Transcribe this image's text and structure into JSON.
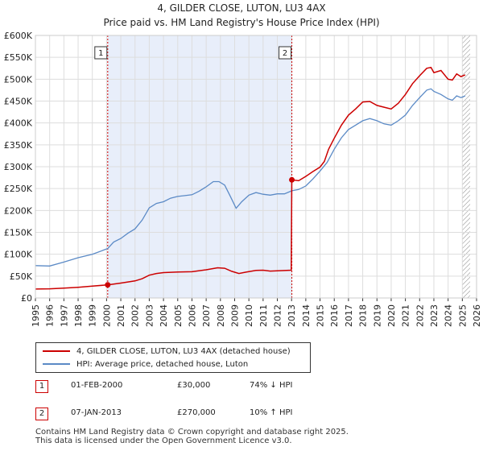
{
  "chart_data": {
    "type": "line",
    "title": "4, GILDER CLOSE, LUTON, LU3 4AX",
    "subtitle": "Price paid vs. HM Land Registry's House Price Index (HPI)",
    "xlim": [
      1995,
      2026
    ],
    "ylim": [
      0,
      600000
    ],
    "x_ticks": [
      "1995",
      "1996",
      "1997",
      "1998",
      "1999",
      "2000",
      "2001",
      "2002",
      "2003",
      "2004",
      "2005",
      "2006",
      "2007",
      "2008",
      "2009",
      "2010",
      "2011",
      "2012",
      "2013",
      "2014",
      "2015",
      "2016",
      "2017",
      "2018",
      "2019",
      "2020",
      "2021",
      "2022",
      "2023",
      "2024",
      "2025",
      "2026"
    ],
    "y_ticks": [
      {
        "value": 0,
        "label": "£0"
      },
      {
        "value": 50000,
        "label": "£50K"
      },
      {
        "value": 100000,
        "label": "£100K"
      },
      {
        "value": 150000,
        "label": "£150K"
      },
      {
        "value": 200000,
        "label": "£200K"
      },
      {
        "value": 250000,
        "label": "£250K"
      },
      {
        "value": 300000,
        "label": "£300K"
      },
      {
        "value": 350000,
        "label": "£350K"
      },
      {
        "value": 400000,
        "label": "£400K"
      },
      {
        "value": 450000,
        "label": "£450K"
      },
      {
        "value": 500000,
        "label": "£500K"
      },
      {
        "value": 550000,
        "label": "£550K"
      },
      {
        "value": 600000,
        "label": "£600K"
      }
    ],
    "grid": true,
    "shaded_span": [
      2000.08,
      2013.02
    ],
    "hatched_after": 2025.0,
    "series": [
      {
        "name": "4, GILDER CLOSE, LUTON, LU3 4AX (detached house)",
        "color": "#cc0000",
        "points": [
          [
            1995.0,
            20500
          ],
          [
            1996.0,
            21000
          ],
          [
            1997.0,
            22500
          ],
          [
            1998.0,
            24500
          ],
          [
            1999.0,
            27000
          ],
          [
            2000.08,
            30000
          ],
          [
            2001.0,
            34000
          ],
          [
            2002.0,
            39000
          ],
          [
            2002.5,
            44000
          ],
          [
            2003.0,
            52000
          ],
          [
            2003.5,
            56000
          ],
          [
            2004.0,
            58000
          ],
          [
            2005.0,
            59500
          ],
          [
            2006.0,
            60000
          ],
          [
            2007.0,
            64500
          ],
          [
            2007.8,
            69000
          ],
          [
            2008.3,
            68000
          ],
          [
            2008.8,
            61000
          ],
          [
            2009.3,
            56000
          ],
          [
            2009.8,
            59000
          ],
          [
            2010.5,
            63000
          ],
          [
            2011.0,
            63500
          ],
          [
            2011.5,
            61500
          ],
          [
            2012.0,
            62000
          ],
          [
            2012.98,
            63500
          ],
          [
            2013.02,
            270000
          ],
          [
            2013.5,
            268000
          ],
          [
            2014.0,
            278000
          ],
          [
            2014.5,
            289000
          ],
          [
            2015.0,
            299000
          ],
          [
            2015.3,
            312000
          ],
          [
            2015.6,
            340000
          ],
          [
            2016.0,
            365000
          ],
          [
            2016.5,
            395000
          ],
          [
            2017.0,
            418000
          ],
          [
            2017.5,
            432000
          ],
          [
            2018.0,
            448000
          ],
          [
            2018.5,
            449000
          ],
          [
            2019.0,
            440000
          ],
          [
            2019.5,
            436000
          ],
          [
            2020.0,
            432000
          ],
          [
            2020.5,
            445000
          ],
          [
            2021.0,
            465000
          ],
          [
            2021.5,
            490000
          ],
          [
            2022.0,
            508000
          ],
          [
            2022.5,
            525000
          ],
          [
            2022.8,
            527000
          ],
          [
            2023.0,
            515000
          ],
          [
            2023.5,
            520000
          ],
          [
            2024.0,
            500000
          ],
          [
            2024.3,
            498000
          ],
          [
            2024.6,
            512000
          ],
          [
            2024.9,
            506000
          ],
          [
            2025.2,
            510000
          ]
        ]
      },
      {
        "name": "HPI: Average price, detached house, Luton",
        "color": "#5b8ac6",
        "points": [
          [
            1995.0,
            74000
          ],
          [
            1996.0,
            73000
          ],
          [
            1997.0,
            82000
          ],
          [
            1998.0,
            92000
          ],
          [
            1999.0,
            100000
          ],
          [
            2000.08,
            113000
          ],
          [
            2000.5,
            128000
          ],
          [
            2001.0,
            136000
          ],
          [
            2001.5,
            148000
          ],
          [
            2002.0,
            158000
          ],
          [
            2002.5,
            178000
          ],
          [
            2003.0,
            206000
          ],
          [
            2003.5,
            216000
          ],
          [
            2004.0,
            220000
          ],
          [
            2004.5,
            228000
          ],
          [
            2005.0,
            232000
          ],
          [
            2005.5,
            234000
          ],
          [
            2006.0,
            236000
          ],
          [
            2006.5,
            244000
          ],
          [
            2007.0,
            254000
          ],
          [
            2007.5,
            266000
          ],
          [
            2007.9,
            266000
          ],
          [
            2008.3,
            258000
          ],
          [
            2008.7,
            232000
          ],
          [
            2009.1,
            205000
          ],
          [
            2009.5,
            220000
          ],
          [
            2010.0,
            235000
          ],
          [
            2010.5,
            241000
          ],
          [
            2011.0,
            237000
          ],
          [
            2011.5,
            235000
          ],
          [
            2012.0,
            238000
          ],
          [
            2012.5,
            238000
          ],
          [
            2013.02,
            245000
          ],
          [
            2013.5,
            248000
          ],
          [
            2014.0,
            256000
          ],
          [
            2014.5,
            272000
          ],
          [
            2015.0,
            290000
          ],
          [
            2015.5,
            310000
          ],
          [
            2016.0,
            340000
          ],
          [
            2016.5,
            366000
          ],
          [
            2017.0,
            385000
          ],
          [
            2017.5,
            395000
          ],
          [
            2018.0,
            405000
          ],
          [
            2018.5,
            410000
          ],
          [
            2019.0,
            405000
          ],
          [
            2019.5,
            398000
          ],
          [
            2020.0,
            395000
          ],
          [
            2020.5,
            405000
          ],
          [
            2021.0,
            418000
          ],
          [
            2021.5,
            440000
          ],
          [
            2022.0,
            458000
          ],
          [
            2022.5,
            475000
          ],
          [
            2022.8,
            478000
          ],
          [
            2023.0,
            472000
          ],
          [
            2023.5,
            465000
          ],
          [
            2024.0,
            455000
          ],
          [
            2024.3,
            452000
          ],
          [
            2024.6,
            462000
          ],
          [
            2024.9,
            458000
          ],
          [
            2025.2,
            462000
          ]
        ]
      }
    ],
    "sales": [
      {
        "marker": "1",
        "x": 2000.08,
        "value": 30000
      },
      {
        "marker": "2",
        "x": 2013.02,
        "value": 270000
      }
    ]
  },
  "legend": {
    "property_label": "4, GILDER CLOSE, LUTON, LU3 4AX (detached house)",
    "hpi_label": "HPI: Average price, detached house, Luton",
    "property_color": "#cc0000",
    "hpi_color": "#5b8ac6"
  },
  "sales_table": [
    {
      "marker": "1",
      "date": "01-FEB-2000",
      "price": "£30,000",
      "hpi": "74% ↓ HPI"
    },
    {
      "marker": "2",
      "date": "07-JAN-2013",
      "price": "£270,000",
      "hpi": "10% ↑ HPI"
    }
  ],
  "footer": {
    "line1": "Contains HM Land Registry data © Crown copyright and database right 2025.",
    "line2": "This data is licensed under the Open Government Licence v3.0."
  }
}
